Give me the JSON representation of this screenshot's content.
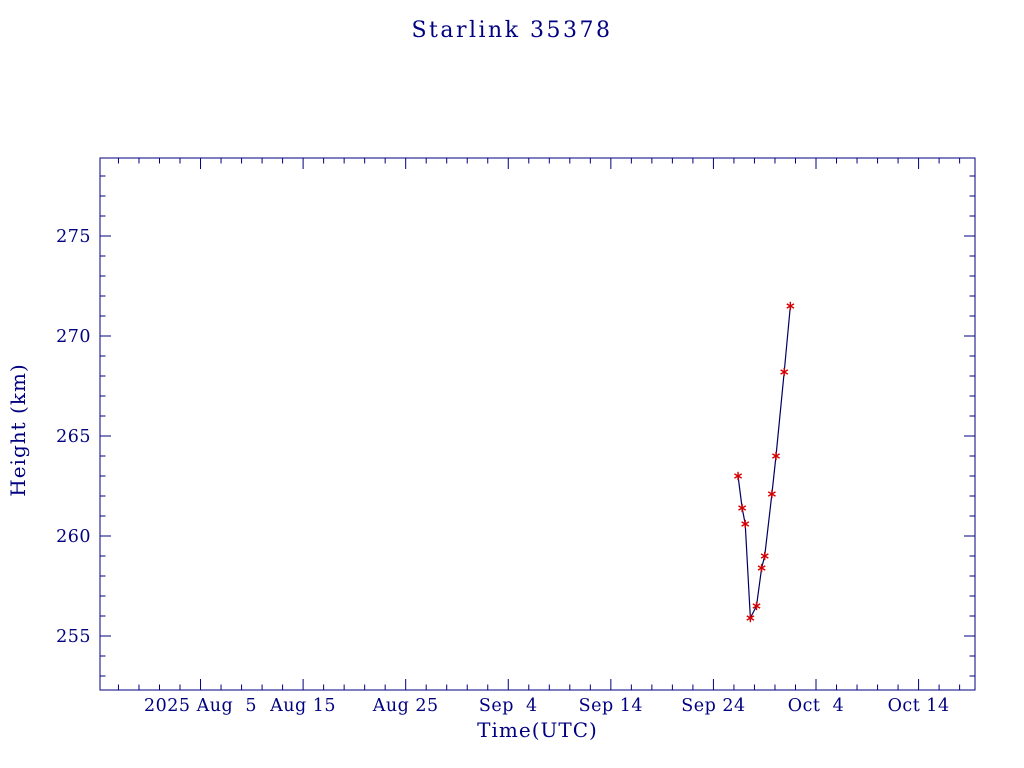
{
  "chart_data": {
    "type": "line",
    "title": "Starlink 35378",
    "xlabel": "Time(UTC)",
    "ylabel": "Height (km)",
    "legend": "none",
    "grid": false,
    "marker": "asterisk",
    "x_unit": "days relative to 2025 Aug 5",
    "xlim": [
      -9.8,
      75.5
    ],
    "ylim": [
      252.3,
      278.9
    ],
    "colors": {
      "background": "#ffffff",
      "axis": "#000080",
      "text": "#000080",
      "line": "#000060",
      "marker": "#d40000"
    },
    "x_major_ticks": [
      {
        "value": 0,
        "label": "2025 Aug  5"
      },
      {
        "value": 10,
        "label": "Aug 15"
      },
      {
        "value": 20,
        "label": "Aug 25"
      },
      {
        "value": 30,
        "label": "Sep  4"
      },
      {
        "value": 40,
        "label": "Sep 14"
      },
      {
        "value": 50,
        "label": "Sep 24"
      },
      {
        "value": 60,
        "label": "Oct  4"
      },
      {
        "value": 70,
        "label": "Oct 14"
      }
    ],
    "x_minor_step": 2,
    "y_major_ticks": [
      {
        "value": 255,
        "label": "255"
      },
      {
        "value": 260,
        "label": "260"
      },
      {
        "value": 265,
        "label": "265"
      },
      {
        "value": 270,
        "label": "270"
      },
      {
        "value": 275,
        "label": "275"
      }
    ],
    "y_minor_step": 1,
    "points": [
      {
        "x": 52.4,
        "y": 263.0
      },
      {
        "x": 52.8,
        "y": 261.4
      },
      {
        "x": 53.1,
        "y": 260.6
      },
      {
        "x": 53.6,
        "y": 255.9
      },
      {
        "x": 54.2,
        "y": 256.5
      },
      {
        "x": 54.7,
        "y": 258.4
      },
      {
        "x": 55.0,
        "y": 259.0
      },
      {
        "x": 55.7,
        "y": 262.1
      },
      {
        "x": 56.1,
        "y": 264.0
      },
      {
        "x": 56.9,
        "y": 268.2
      },
      {
        "x": 57.5,
        "y": 271.5
      }
    ]
  }
}
